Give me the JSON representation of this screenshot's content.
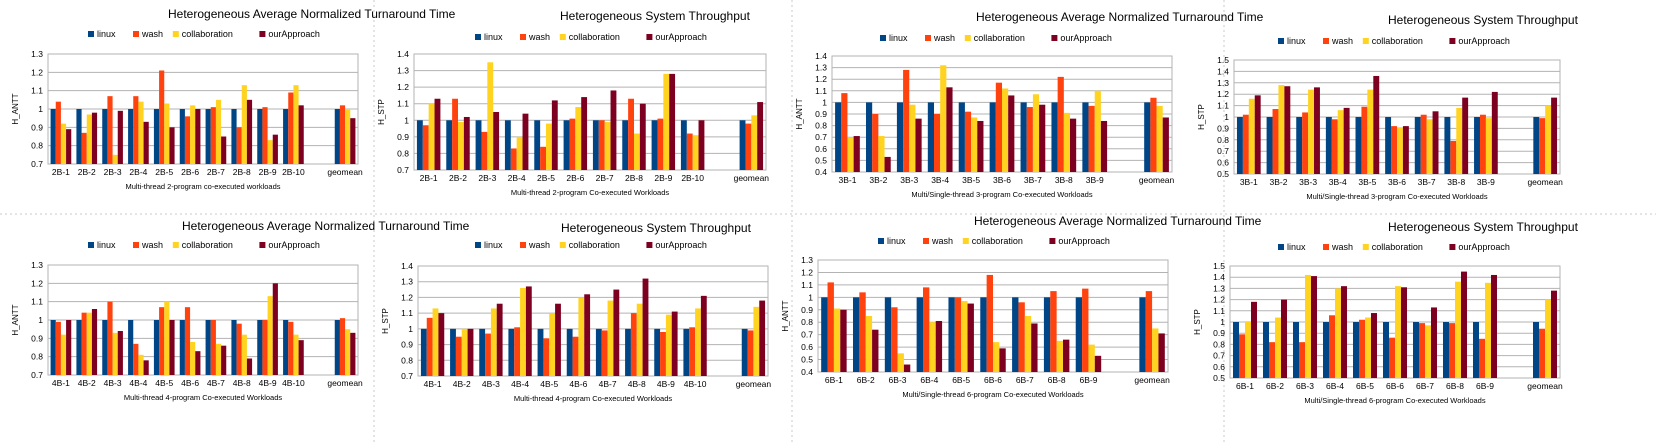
{
  "series_names": [
    "linux",
    "wash",
    "collaboration",
    "ourApproach"
  ],
  "colors": {
    "linux": "#004586",
    "wash": "#ff420e",
    "collaboration": "#ffd320",
    "ourApproach": "#7e0021"
  },
  "chart_data": [
    {
      "type": "bar",
      "title": "Heterogeneous Average Normalized Turnaround Time",
      "xlabel": "Multi-thread 2-program co-executed workloads",
      "ylabel": "H_ANTT",
      "ylim": [
        0.7,
        1.3
      ],
      "yticks": [
        "0.7",
        "0.8",
        "0.9",
        "1",
        "1.1",
        "1.2",
        "1.3"
      ],
      "categories": [
        "2B-1",
        "2B-2",
        "2B-3",
        "2B-4",
        "2B-5",
        "2B-6",
        "2B-7",
        "2B-8",
        "2B-9",
        "2B-10",
        "",
        "geomean"
      ],
      "series": [
        {
          "name": "linux",
          "values": [
            1.0,
            1.0,
            1.0,
            1.0,
            1.0,
            1.0,
            1.0,
            1.0,
            1.0,
            1.0,
            null,
            1.0
          ]
        },
        {
          "name": "wash",
          "values": [
            1.04,
            0.87,
            1.07,
            1.07,
            1.21,
            0.96,
            1.01,
            0.9,
            1.01,
            1.09,
            null,
            1.02
          ]
        },
        {
          "name": "collaboration",
          "values": [
            0.92,
            0.97,
            0.75,
            1.04,
            1.03,
            1.02,
            1.05,
            1.13,
            0.83,
            1.13,
            null,
            1.0
          ]
        },
        {
          "name": "ourApproach",
          "values": [
            0.89,
            0.98,
            0.99,
            0.93,
            0.9,
            1.0,
            0.85,
            1.05,
            0.86,
            1.02,
            null,
            0.95
          ]
        }
      ],
      "legend": "top"
    },
    {
      "type": "bar",
      "title": "Heterogeneous System Throughput",
      "xlabel": "Multi-thread 2-program Co-executed Workloads",
      "ylabel": "H_STP",
      "ylim": [
        0.7,
        1.4
      ],
      "yticks": [
        "0.7",
        "0.8",
        "0.9",
        "1",
        "1.1",
        "1.2",
        "1.3",
        "1.4"
      ],
      "categories": [
        "2B-1",
        "2B-2",
        "2B-3",
        "2B-4",
        "2B-5",
        "2B-6",
        "2B-7",
        "2B-8",
        "2B-9",
        "2B-10",
        "",
        "geomean"
      ],
      "series": [
        {
          "name": "linux",
          "values": [
            1.0,
            1.0,
            1.0,
            1.0,
            1.0,
            1.0,
            1.0,
            1.0,
            1.0,
            1.0,
            null,
            1.0
          ]
        },
        {
          "name": "wash",
          "values": [
            0.97,
            1.13,
            0.93,
            0.83,
            0.84,
            1.01,
            1.0,
            1.13,
            1.01,
            0.92,
            null,
            0.98
          ]
        },
        {
          "name": "collaboration",
          "values": [
            1.1,
            0.99,
            1.35,
            0.9,
            0.98,
            1.08,
            0.99,
            0.92,
            1.28,
            0.91,
            null,
            1.03
          ]
        },
        {
          "name": "ourApproach",
          "values": [
            1.13,
            1.02,
            1.05,
            1.04,
            1.12,
            1.14,
            1.18,
            1.1,
            1.28,
            1.0,
            null,
            1.11
          ]
        }
      ],
      "legend": "top"
    },
    {
      "type": "bar",
      "title": "Heterogeneous Average Normalized Turnaround Time",
      "xlabel": "Multi/Single-thread 3-program Co-executed Workloads",
      "ylabel": "H_ANTT",
      "ylim": [
        0.4,
        1.4
      ],
      "yticks": [
        "0.4",
        "0.5",
        "0.6",
        "0.7",
        "0.8",
        "0.9",
        "1",
        "1.1",
        "1.2",
        "1.3",
        "1.4"
      ],
      "categories": [
        "3B-1",
        "3B-2",
        "3B-3",
        "3B-4",
        "3B-5",
        "3B-6",
        "3B-7",
        "3B-8",
        "3B-9",
        "",
        "geomean"
      ],
      "series": [
        {
          "name": "linux",
          "values": [
            1.0,
            1.0,
            1.0,
            1.0,
            1.0,
            1.0,
            1.0,
            1.0,
            1.0,
            null,
            1.0
          ]
        },
        {
          "name": "wash",
          "values": [
            1.08,
            0.9,
            1.28,
            0.9,
            0.92,
            1.17,
            0.96,
            1.22,
            0.97,
            null,
            1.04
          ]
        },
        {
          "name": "collaboration",
          "values": [
            0.7,
            0.71,
            0.98,
            1.32,
            0.87,
            1.12,
            1.07,
            0.91,
            1.1,
            null,
            0.97
          ]
        },
        {
          "name": "ourApproach",
          "values": [
            0.71,
            0.53,
            0.86,
            1.13,
            0.84,
            1.06,
            0.98,
            0.86,
            0.84,
            null,
            0.87
          ]
        }
      ],
      "legend": "top"
    },
    {
      "type": "bar",
      "title": "Heterogeneous System Throughput",
      "xlabel": "Multi/Single-thread 3-program Co-executed Workloads",
      "ylabel": "H_STP",
      "ylim": [
        0.5,
        1.5
      ],
      "yticks": [
        "0.5",
        "0.6",
        "0.7",
        "0.8",
        "0.9",
        "1",
        "1.1",
        "1.2",
        "1.3",
        "1.4",
        "1.5"
      ],
      "categories": [
        "3B-1",
        "3B-2",
        "3B-3",
        "3B-4",
        "3B-5",
        "3B-6",
        "3B-7",
        "3B-8",
        "3B-9",
        "",
        "geomean"
      ],
      "series": [
        {
          "name": "linux",
          "values": [
            1.0,
            1.0,
            1.0,
            1.0,
            1.0,
            1.0,
            1.0,
            1.0,
            1.0,
            null,
            1.0
          ]
        },
        {
          "name": "wash",
          "values": [
            1.02,
            1.07,
            1.04,
            0.98,
            1.09,
            0.92,
            1.02,
            0.79,
            1.02,
            null,
            0.99
          ]
        },
        {
          "name": "collaboration",
          "values": [
            1.16,
            1.28,
            1.24,
            1.06,
            1.24,
            0.91,
            0.98,
            1.08,
            0.99,
            null,
            1.1
          ]
        },
        {
          "name": "ourApproach",
          "values": [
            1.19,
            1.27,
            1.26,
            1.08,
            1.36,
            0.92,
            1.05,
            1.17,
            1.22,
            null,
            1.17
          ]
        }
      ],
      "legend": "top"
    },
    {
      "type": "bar",
      "title": "Heterogeneous Average Normalized Turnaround Time",
      "xlabel": "Multi-thread 4-program Co-executed Workloads",
      "ylabel": "H_ANTT",
      "ylim": [
        0.7,
        1.3
      ],
      "yticks": [
        "0.7",
        "0.8",
        "0.9",
        "1",
        "1.1",
        "1.2",
        "1.3"
      ],
      "categories": [
        "4B-1",
        "4B-2",
        "4B-3",
        "4B-4",
        "4B-5",
        "4B-6",
        "4B-7",
        "4B-8",
        "4B-9",
        "4B-10",
        "",
        "geomean"
      ],
      "series": [
        {
          "name": "linux",
          "values": [
            1.0,
            1.0,
            1.0,
            1.0,
            1.0,
            1.0,
            1.0,
            1.0,
            1.0,
            1.0,
            null,
            1.0
          ]
        },
        {
          "name": "wash",
          "values": [
            0.99,
            1.04,
            1.1,
            0.87,
            1.07,
            1.07,
            1.0,
            0.98,
            1.0,
            0.99,
            null,
            1.01
          ]
        },
        {
          "name": "collaboration",
          "values": [
            0.92,
            1.04,
            0.93,
            0.81,
            1.1,
            0.88,
            0.87,
            0.92,
            1.13,
            0.92,
            null,
            0.95
          ]
        },
        {
          "name": "ourApproach",
          "values": [
            1.0,
            1.06,
            0.94,
            0.78,
            1.0,
            0.83,
            0.86,
            0.79,
            1.2,
            0.89,
            null,
            0.93
          ]
        }
      ],
      "legend": "top"
    },
    {
      "type": "bar",
      "title": "Heterogeneous System Throughput",
      "xlabel": "Multi-thread 4-program Co-executed Workloads",
      "ylabel": "H_STP",
      "ylim": [
        0.7,
        1.4
      ],
      "yticks": [
        "0.7",
        "0.8",
        "0.9",
        "1",
        "1.1",
        "1.2",
        "1.3",
        "1.4"
      ],
      "categories": [
        "4B-1",
        "4B-2",
        "4B-3",
        "4B-4",
        "4B-5",
        "4B-6",
        "4B-7",
        "4B-8",
        "4B-9",
        "4B-10",
        "",
        "geomean"
      ],
      "series": [
        {
          "name": "linux",
          "values": [
            1.0,
            1.0,
            1.0,
            1.0,
            1.0,
            1.0,
            1.0,
            1.0,
            1.0,
            1.0,
            null,
            1.0
          ]
        },
        {
          "name": "wash",
          "values": [
            1.07,
            0.95,
            0.97,
            1.01,
            0.94,
            0.95,
            0.99,
            1.1,
            0.98,
            1.01,
            null,
            0.99
          ]
        },
        {
          "name": "collaboration",
          "values": [
            1.13,
            1.0,
            1.13,
            1.26,
            1.1,
            1.2,
            1.18,
            1.16,
            1.09,
            1.13,
            null,
            1.14
          ]
        },
        {
          "name": "ourApproach",
          "values": [
            1.1,
            1.0,
            1.16,
            1.27,
            1.16,
            1.22,
            1.25,
            1.32,
            1.11,
            1.21,
            null,
            1.18
          ]
        }
      ],
      "legend": "top"
    },
    {
      "type": "bar",
      "title": "Heterogeneous Average Normalized Turnaround Time",
      "xlabel": "Multi/Single-thread 6-program Co-executed Workloads",
      "ylabel": "H_ANTT",
      "ylim": [
        0.4,
        1.3
      ],
      "yticks": [
        "0.4",
        "0.5",
        "0.6",
        "0.7",
        "0.8",
        "0.9",
        "1",
        "1.1",
        "1.2",
        "1.3"
      ],
      "categories": [
        "6B-1",
        "6B-2",
        "6B-3",
        "6B-4",
        "6B-5",
        "6B-6",
        "6B-7",
        "6B-8",
        "6B-9",
        "",
        "geomean"
      ],
      "series": [
        {
          "name": "linux",
          "values": [
            1.0,
            1.0,
            1.0,
            1.0,
            1.0,
            1.0,
            1.0,
            1.0,
            1.0,
            null,
            1.0
          ]
        },
        {
          "name": "wash",
          "values": [
            1.12,
            1.04,
            0.92,
            1.08,
            1.0,
            1.18,
            0.96,
            1.05,
            1.07,
            null,
            1.05
          ]
        },
        {
          "name": "collaboration",
          "values": [
            0.91,
            0.85,
            0.55,
            0.8,
            0.97,
            0.64,
            0.85,
            0.65,
            0.62,
            null,
            0.75
          ]
        },
        {
          "name": "ourApproach",
          "values": [
            0.9,
            0.74,
            0.46,
            0.81,
            0.95,
            0.59,
            0.79,
            0.66,
            0.53,
            null,
            0.71
          ]
        }
      ],
      "legend": "top"
    },
    {
      "type": "bar",
      "title": "Heterogeneous System Throughput",
      "xlabel": "Multi/Single-thread 6-program Co-executed Workloads",
      "ylabel": "H_STP",
      "ylim": [
        0.5,
        1.5
      ],
      "yticks": [
        "0.5",
        "0.6",
        "0.7",
        "0.8",
        "0.9",
        "1",
        "1.1",
        "1.2",
        "1.3",
        "1.4",
        "1.5"
      ],
      "categories": [
        "6B-1",
        "6B-2",
        "6B-3",
        "6B-4",
        "6B-5",
        "6B-6",
        "6B-7",
        "6B-8",
        "6B-9",
        "",
        "geomean"
      ],
      "series": [
        {
          "name": "linux",
          "values": [
            1.0,
            1.0,
            1.0,
            1.0,
            1.0,
            1.0,
            1.0,
            1.0,
            1.0,
            null,
            1.0
          ]
        },
        {
          "name": "wash",
          "values": [
            0.89,
            0.82,
            0.82,
            1.06,
            1.02,
            0.86,
            0.99,
            0.99,
            0.85,
            null,
            0.94
          ]
        },
        {
          "name": "collaboration",
          "values": [
            1.0,
            1.04,
            1.42,
            1.3,
            1.04,
            1.32,
            0.97,
            1.36,
            1.35,
            null,
            1.2
          ]
        },
        {
          "name": "ourApproach",
          "values": [
            1.18,
            1.2,
            1.41,
            1.32,
            1.08,
            1.31,
            1.13,
            1.45,
            1.42,
            null,
            1.28
          ]
        }
      ],
      "legend": "top"
    }
  ]
}
